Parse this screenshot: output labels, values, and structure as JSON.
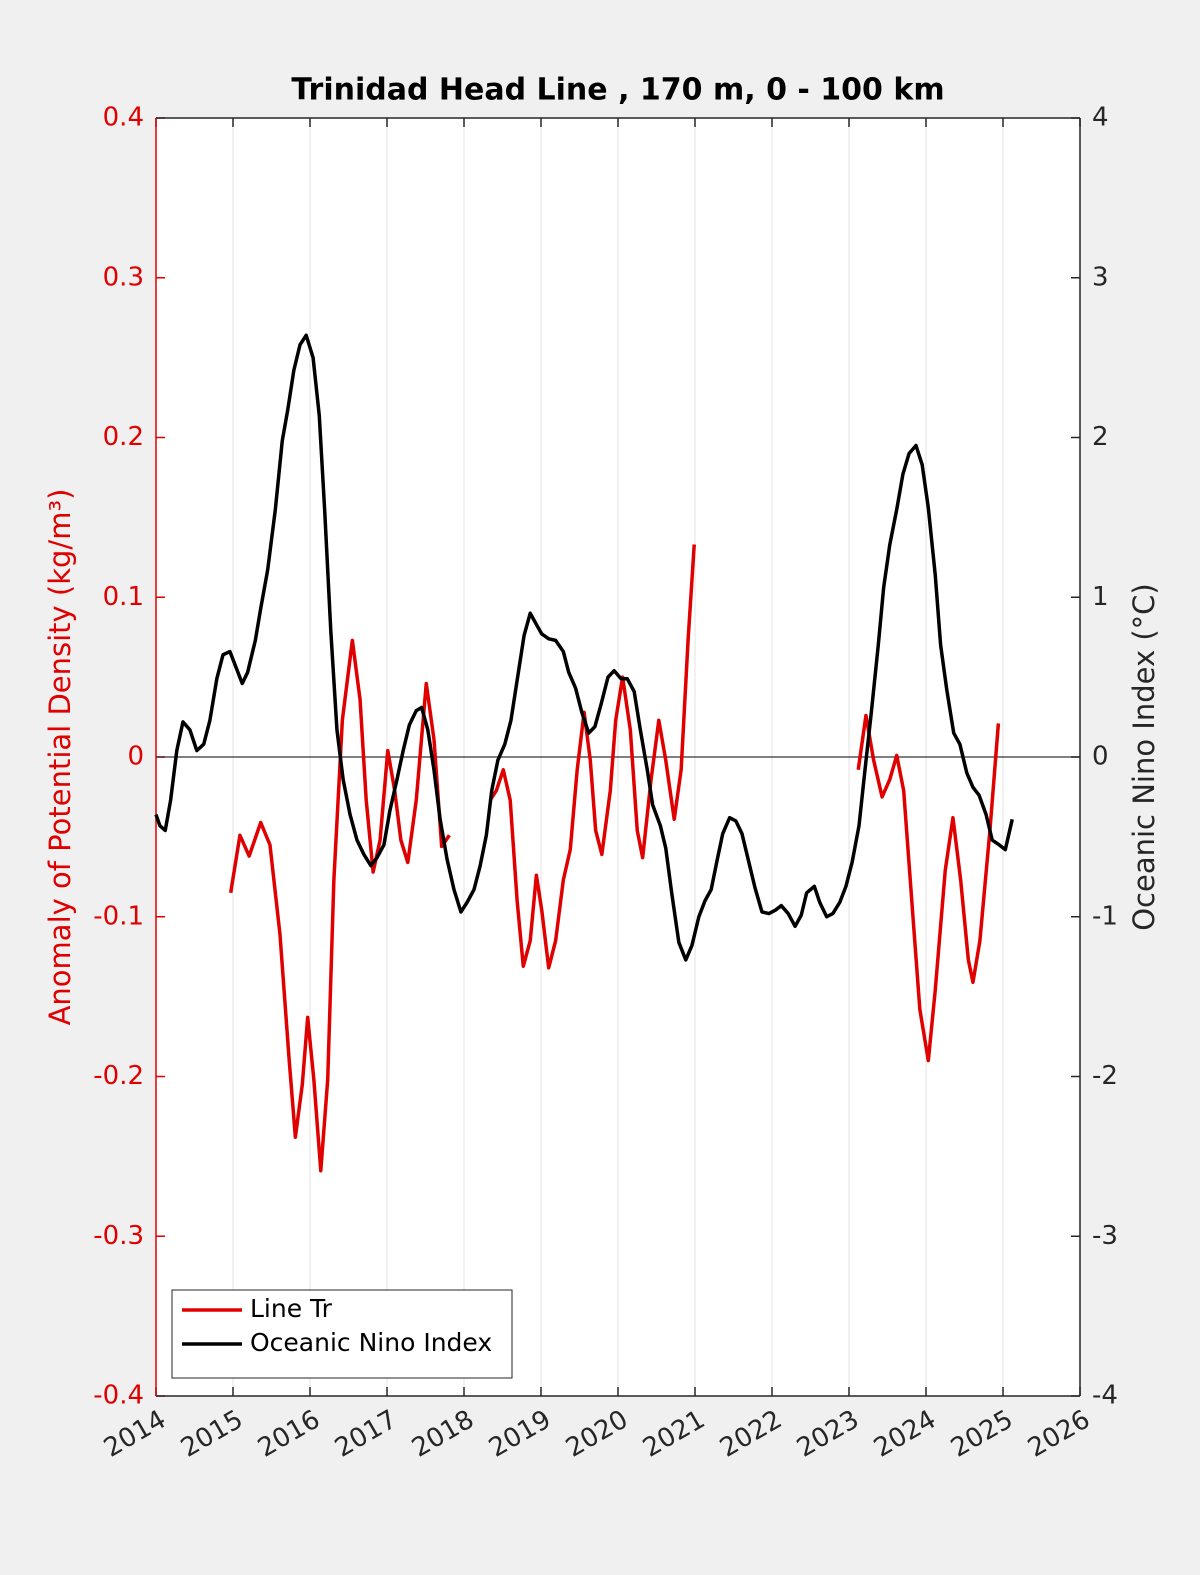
{
  "chart_data": {
    "type": "line",
    "title": "Trinidad Head Line , 170 m, 0 - 100 km",
    "ylabel": "Anomaly of Potential Density (kg/m³)",
    "y2label": "Oceanic Nino Index (°C)",
    "xlim": [
      2014,
      2026
    ],
    "xticks": [
      2014,
      2015,
      2016,
      2017,
      2018,
      2019,
      2020,
      2021,
      2022,
      2023,
      2024,
      2025,
      2026
    ],
    "ylim": [
      -0.4,
      0.4
    ],
    "yticks": [
      -0.4,
      -0.3,
      -0.2,
      -0.1,
      0,
      0.1,
      0.2,
      0.3,
      0.4
    ],
    "y2lim": [
      -4,
      4
    ],
    "y2ticks": [
      -4,
      -3,
      -2,
      -1,
      0,
      1,
      2,
      3,
      4
    ],
    "grid": "x",
    "legend": "southwest",
    "ylabel_color": "#e00000",
    "series": [
      {
        "name": "Line Tr",
        "color": "#e00000",
        "axis": "y",
        "x": [
          2014.97,
          2015.09,
          2015.21,
          2015.36,
          2015.48,
          2015.61,
          2015.73,
          2015.81,
          2015.9,
          2015.97,
          2016.05,
          2016.14,
          2016.23,
          2016.31,
          2016.42,
          2016.55,
          2016.65,
          2016.73,
          2016.82,
          2016.91,
          2017.01,
          2017.1,
          2017.18,
          2017.27,
          2017.38,
          2017.51,
          2017.61,
          2017.71,
          2017.81,
          2018.0,
          2018.34,
          2018.42,
          2018.51,
          2018.6,
          2018.69,
          2018.77,
          2018.86,
          2018.94,
          2019.01,
          2019.1,
          2019.19,
          2019.29,
          2019.38,
          2019.47,
          2019.56,
          2019.64,
          2019.71,
          2019.79,
          2019.9,
          2019.97,
          2020.06,
          2020.16,
          2020.25,
          2020.32,
          2020.43,
          2020.53,
          2020.62,
          2020.73,
          2020.82,
          2020.91,
          2020.99,
          2022.0,
          2023.12,
          2023.22,
          2023.32,
          2023.43,
          2023.53,
          2023.62,
          2023.71,
          2023.82,
          2023.92,
          2024.03,
          2024.12,
          2024.25,
          2024.35,
          2024.45,
          2024.55,
          2024.61,
          2024.7,
          2024.83,
          2024.94
        ],
        "values": [
          -0.085,
          -0.049,
          -0.062,
          -0.041,
          -0.055,
          -0.111,
          -0.19,
          -0.238,
          -0.205,
          -0.163,
          -0.202,
          -0.259,
          -0.202,
          -0.077,
          0.023,
          0.073,
          0.036,
          -0.027,
          -0.072,
          -0.052,
          0.004,
          -0.021,
          -0.052,
          -0.066,
          -0.027,
          0.046,
          0.011,
          -0.056,
          -0.049,
          null,
          -0.027,
          -0.021,
          -0.008,
          -0.027,
          -0.09,
          -0.131,
          -0.115,
          -0.074,
          -0.096,
          -0.132,
          -0.115,
          -0.077,
          -0.058,
          -0.008,
          0.028,
          -0.002,
          -0.046,
          -0.061,
          -0.021,
          0.023,
          0.05,
          0.017,
          -0.046,
          -0.063,
          -0.014,
          0.023,
          -0.002,
          -0.039,
          -0.008,
          0.073,
          0.133,
          null,
          -0.008,
          0.026,
          -0.002,
          -0.025,
          -0.014,
          0.001,
          -0.021,
          -0.093,
          -0.158,
          -0.19,
          -0.146,
          -0.071,
          -0.038,
          -0.077,
          -0.127,
          -0.141,
          -0.115,
          -0.046,
          0.021
        ]
      },
      {
        "name": "Oceanic Nino Index",
        "color": "#000000",
        "axis": "y2",
        "x": [
          2014.0,
          2014.05,
          2014.12,
          2014.19,
          2014.27,
          2014.35,
          2014.44,
          2014.53,
          2014.62,
          2014.7,
          2014.79,
          2014.87,
          2014.96,
          2015.04,
          2015.12,
          2015.19,
          2015.29,
          2015.36,
          2015.45,
          2015.55,
          2015.64,
          2015.71,
          2015.79,
          2015.87,
          2015.95,
          2016.04,
          2016.12,
          2016.19,
          2016.27,
          2016.35,
          2016.43,
          2016.52,
          2016.61,
          2016.7,
          2016.79,
          2016.87,
          2016.96,
          2017.04,
          2017.13,
          2017.21,
          2017.29,
          2017.38,
          2017.45,
          2017.53,
          2017.61,
          2017.69,
          2017.78,
          2017.87,
          2017.96,
          2018.04,
          2018.13,
          2018.21,
          2018.29,
          2018.36,
          2018.44,
          2018.53,
          2018.61,
          2018.69,
          2018.78,
          2018.86,
          2018.94,
          2019.01,
          2019.1,
          2019.19,
          2019.29,
          2019.36,
          2019.45,
          2019.53,
          2019.62,
          2019.7,
          2019.78,
          2019.87,
          2019.95,
          2020.04,
          2020.12,
          2020.21,
          2020.29,
          2020.38,
          2020.45,
          2020.55,
          2020.62,
          2020.7,
          2020.79,
          2020.88,
          2020.96,
          2021.05,
          2021.13,
          2021.21,
          2021.29,
          2021.36,
          2021.45,
          2021.53,
          2021.61,
          2021.7,
          2021.78,
          2021.87,
          2021.96,
          2022.04,
          2022.12,
          2022.21,
          2022.3,
          2022.38,
          2022.45,
          2022.55,
          2022.62,
          2022.71,
          2022.79,
          2022.88,
          2022.96,
          2023.04,
          2023.13,
          2023.21,
          2023.29,
          2023.38,
          2023.45,
          2023.53,
          2023.62,
          2023.7,
          2023.78,
          2023.87,
          2023.95,
          2024.03,
          2024.12,
          2024.19,
          2024.27,
          2024.36,
          2024.44,
          2024.53,
          2024.61,
          2024.69,
          2024.78,
          2024.86,
          2024.95,
          2025.03,
          2025.12
        ],
        "values": [
          -0.36,
          -0.43,
          -0.46,
          -0.27,
          0.04,
          0.22,
          0.17,
          0.04,
          0.08,
          0.23,
          0.49,
          0.64,
          0.66,
          0.56,
          0.46,
          0.53,
          0.73,
          0.93,
          1.17,
          1.55,
          1.98,
          2.17,
          2.42,
          2.58,
          2.64,
          2.5,
          2.14,
          1.55,
          0.79,
          0.17,
          -0.14,
          -0.36,
          -0.52,
          -0.61,
          -0.68,
          -0.63,
          -0.55,
          -0.33,
          -0.14,
          0.04,
          0.2,
          0.29,
          0.31,
          0.17,
          -0.08,
          -0.39,
          -0.64,
          -0.83,
          -0.97,
          -0.91,
          -0.83,
          -0.68,
          -0.49,
          -0.21,
          -0.02,
          0.08,
          0.23,
          0.48,
          0.76,
          0.9,
          0.83,
          0.77,
          0.74,
          0.73,
          0.66,
          0.53,
          0.43,
          0.28,
          0.15,
          0.19,
          0.33,
          0.5,
          0.54,
          0.49,
          0.49,
          0.41,
          0.17,
          -0.08,
          -0.3,
          -0.43,
          -0.57,
          -0.86,
          -1.16,
          -1.27,
          -1.18,
          -1.0,
          -0.9,
          -0.83,
          -0.64,
          -0.48,
          -0.38,
          -0.4,
          -0.48,
          -0.66,
          -0.82,
          -0.97,
          -0.98,
          -0.96,
          -0.93,
          -0.98,
          -1.06,
          -0.99,
          -0.85,
          -0.81,
          -0.91,
          -1.0,
          -0.98,
          -0.91,
          -0.81,
          -0.66,
          -0.43,
          -0.07,
          0.28,
          0.7,
          1.06,
          1.33,
          1.55,
          1.77,
          1.9,
          1.95,
          1.83,
          1.56,
          1.14,
          0.7,
          0.42,
          0.15,
          0.08,
          -0.1,
          -0.19,
          -0.24,
          -0.36,
          -0.52,
          -0.55,
          -0.58,
          -0.39
        ]
      }
    ]
  }
}
